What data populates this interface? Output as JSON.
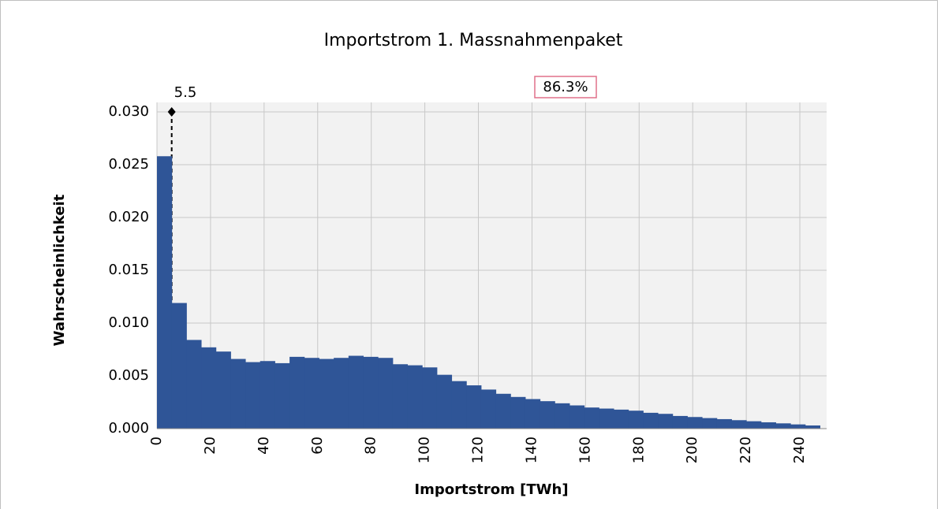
{
  "chart_data": {
    "type": "histogram",
    "title": "Importstrom 1. Massnahmenpaket",
    "x_label": "Importstrom [TWh]",
    "y_label": "Wahrscheinlichkeit",
    "bins": [
      0,
      5.5,
      11,
      16.5,
      22,
      27.5,
      33,
      38.5,
      44,
      49.5,
      55,
      60.5,
      66,
      71.5,
      77,
      82.5,
      88,
      93.5,
      99,
      104.5,
      110,
      115.5,
      121,
      126.5,
      132,
      137.5,
      143,
      148.5,
      154,
      159.5,
      165,
      170.5,
      176,
      181.5,
      187,
      192.5,
      198,
      203.5,
      209,
      214.5,
      220,
      225.5,
      231,
      236.5,
      242,
      247.5
    ],
    "values": [
      0.0258,
      0.0119,
      0.0084,
      0.0077,
      0.0073,
      0.0066,
      0.0063,
      0.0064,
      0.0062,
      0.0068,
      0.0067,
      0.0066,
      0.0067,
      0.0069,
      0.0068,
      0.0067,
      0.0061,
      0.006,
      0.0058,
      0.0051,
      0.0045,
      0.0041,
      0.0037,
      0.0033,
      0.003,
      0.0028,
      0.0026,
      0.0024,
      0.0022,
      0.002,
      0.0019,
      0.0018,
      0.0017,
      0.0015,
      0.0014,
      0.0012,
      0.0011,
      0.001,
      0.0009,
      0.0008,
      0.0007,
      0.0006,
      0.0005,
      0.0004,
      0.0003
    ],
    "color": "#2f5597",
    "marker": 5.5,
    "annotation": "86.3%",
    "xlim": [
      0,
      250
    ],
    "xticks": [
      0,
      20,
      40,
      60,
      80,
      100,
      120,
      140,
      160,
      180,
      200,
      220,
      240
    ],
    "ylim": [
      0,
      0.03
    ],
    "yticks": [
      {
        "value": 0,
        "label": "0.000"
      },
      {
        "value": 0.005,
        "label": "0.005"
      },
      {
        "value": 0.01,
        "label": "0.010"
      },
      {
        "value": 0.015,
        "label": "0.015"
      },
      {
        "value": 0.02,
        "label": "0.020"
      },
      {
        "value": 0.025,
        "label": "0.025"
      },
      {
        "value": 0.03,
        "label": "0.030"
      }
    ],
    "grid": true
  }
}
